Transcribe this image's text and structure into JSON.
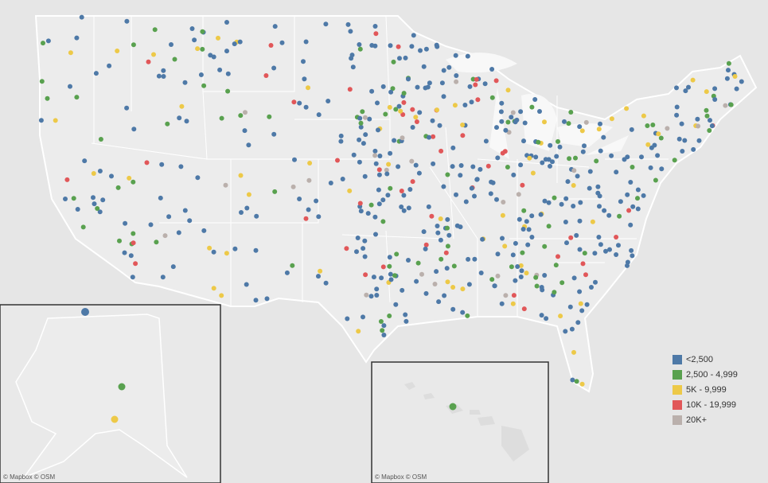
{
  "legend": {
    "items": [
      {
        "label": "<2,500",
        "color": "#4e79a7"
      },
      {
        "label": "2,500 - 4,999",
        "color": "#59a14f"
      },
      {
        "label": "5K - 9,999",
        "color": "#edc948"
      },
      {
        "label": "10K - 19,999",
        "color": "#e15759"
      },
      {
        "label": "20K+",
        "color": "#bab0ac"
      }
    ]
  },
  "attributions": {
    "alaska": "© Mapbox © OSM",
    "hawaii": "© Mapbox © OSM"
  }
}
